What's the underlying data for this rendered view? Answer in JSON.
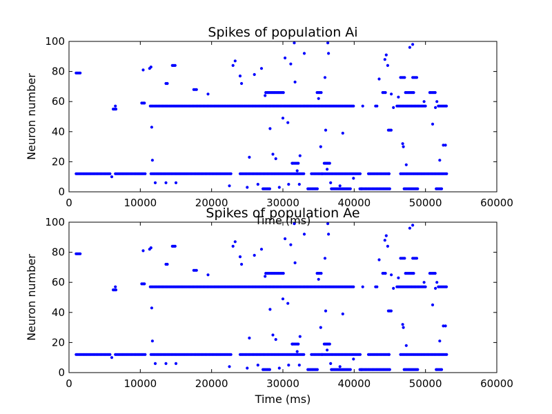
{
  "chart_data": [
    {
      "type": "scatter",
      "title": "Spikes of population Ai",
      "xlabel": "Time (ms)",
      "ylabel": "Neuron number",
      "xlim": [
        0,
        60000
      ],
      "ylim": [
        0,
        100
      ],
      "xticks": [
        "0",
        "10000",
        "20000",
        "30000",
        "40000",
        "50000",
        "60000"
      ],
      "yticks": [
        "0",
        "20",
        "40",
        "60",
        "80",
        "100"
      ],
      "grid": false,
      "marker_color": "#0000ff",
      "rows": [
        {
          "neuron": 79,
          "spans": [
            [
              1000,
              1600
            ]
          ]
        },
        {
          "neuron": 55,
          "spans": [
            [
              6200,
              6700
            ]
          ]
        },
        {
          "neuron": 57,
          "spans": [
            [
              6500,
              6600
            ],
            [
              11400,
              40000
            ],
            [
              41200,
              41300
            ],
            [
              43000,
              43300
            ],
            [
              46000,
              50000
            ],
            [
              51800,
              53000
            ]
          ]
        },
        {
          "neuron": 59,
          "spans": [
            [
              10200,
              10700
            ]
          ]
        },
        {
          "neuron": 12,
          "spans": [
            [
              1000,
              5800
            ],
            [
              6500,
              10800
            ],
            [
              11500,
              22800
            ],
            [
              24000,
              33000
            ],
            [
              34000,
              41000
            ],
            [
              42000,
              45000
            ],
            [
              46500,
              53000
            ]
          ]
        },
        {
          "neuron": 2,
          "spans": [
            [
              27200,
              28200
            ],
            [
              33500,
              35000
            ],
            [
              36800,
              39500
            ],
            [
              40800,
              45000
            ],
            [
              47000,
              49000
            ],
            [
              51500,
              52300
            ]
          ]
        },
        {
          "neuron": 66,
          "spans": [
            [
              27600,
              30200
            ],
            [
              34800,
              35400
            ],
            [
              44000,
              44500
            ],
            [
              47200,
              48400
            ],
            [
              50600,
              51400
            ]
          ]
        },
        {
          "neuron": 76,
          "spans": [
            [
              46500,
              47200
            ],
            [
              48200,
              48800
            ]
          ]
        },
        {
          "neuron": 19,
          "spans": [
            [
              31400,
              32300
            ],
            [
              35800,
              36600
            ]
          ]
        },
        {
          "neuron": 84,
          "spans": [
            [
              14500,
              15000
            ]
          ]
        },
        {
          "neuron": 68,
          "spans": [
            [
              17500,
              18000
            ]
          ]
        },
        {
          "neuron": 72,
          "spans": [
            [
              13600,
              13800
            ]
          ]
        },
        {
          "neuron": 41,
          "spans": [
            [
              44800,
              45300
            ]
          ]
        }
      ],
      "points": [
        [
          6000,
          10
        ],
        [
          10400,
          81
        ],
        [
          11300,
          82
        ],
        [
          11500,
          83
        ],
        [
          11600,
          43
        ],
        [
          11700,
          21
        ],
        [
          12100,
          6
        ],
        [
          13600,
          6
        ],
        [
          15000,
          6
        ],
        [
          19500,
          65
        ],
        [
          22500,
          4
        ],
        [
          23000,
          84
        ],
        [
          23300,
          87
        ],
        [
          24000,
          77
        ],
        [
          24200,
          72
        ],
        [
          25000,
          3
        ],
        [
          25300,
          23
        ],
        [
          26000,
          78
        ],
        [
          26500,
          5
        ],
        [
          27000,
          82
        ],
        [
          27500,
          64
        ],
        [
          28200,
          42
        ],
        [
          28600,
          25
        ],
        [
          29000,
          22
        ],
        [
          29500,
          3
        ],
        [
          30000,
          49
        ],
        [
          30300,
          89
        ],
        [
          30700,
          46
        ],
        [
          30800,
          5
        ],
        [
          31100,
          85
        ],
        [
          31300,
          19
        ],
        [
          31600,
          99
        ],
        [
          31700,
          73
        ],
        [
          32000,
          14
        ],
        [
          32300,
          5
        ],
        [
          32400,
          24
        ],
        [
          33000,
          92
        ],
        [
          35000,
          62
        ],
        [
          35300,
          30
        ],
        [
          35500,
          12
        ],
        [
          35900,
          76
        ],
        [
          36000,
          41
        ],
        [
          36200,
          15
        ],
        [
          36300,
          99
        ],
        [
          36400,
          92
        ],
        [
          36700,
          6
        ],
        [
          38400,
          39
        ],
        [
          38000,
          4
        ],
        [
          39900,
          9
        ],
        [
          41000,
          2
        ],
        [
          43500,
          75
        ],
        [
          44300,
          88
        ],
        [
          44500,
          91
        ],
        [
          44700,
          84
        ],
        [
          44900,
          12
        ],
        [
          45200,
          65
        ],
        [
          45500,
          56
        ],
        [
          46200,
          63
        ],
        [
          46800,
          32
        ],
        [
          46900,
          30
        ],
        [
          47300,
          18
        ],
        [
          47800,
          96
        ],
        [
          48200,
          98
        ],
        [
          49800,
          60
        ],
        [
          51000,
          45
        ],
        [
          51400,
          56
        ],
        [
          51600,
          60
        ],
        [
          52000,
          21
        ],
        [
          52500,
          31
        ],
        [
          52800,
          31
        ]
      ]
    },
    {
      "type": "scatter",
      "title": "Spikes of population Ae",
      "xlabel": "Time (ms)",
      "ylabel": "Neuron number",
      "xlim": [
        0,
        60000
      ],
      "ylim": [
        0,
        100
      ],
      "xticks": [
        "0",
        "10000",
        "20000",
        "30000",
        "40000",
        "50000",
        "60000"
      ],
      "yticks": [
        "0",
        "20",
        "40",
        "60",
        "80",
        "100"
      ],
      "grid": false,
      "marker_color": "#0000ff",
      "rows": [
        {
          "neuron": 79,
          "spans": [
            [
              1000,
              1600
            ]
          ]
        },
        {
          "neuron": 55,
          "spans": [
            [
              6200,
              6700
            ]
          ]
        },
        {
          "neuron": 57,
          "spans": [
            [
              6500,
              6600
            ],
            [
              11400,
              40000
            ],
            [
              41200,
              41300
            ],
            [
              43000,
              43300
            ],
            [
              46000,
              50000
            ],
            [
              51800,
              53000
            ]
          ]
        },
        {
          "neuron": 59,
          "spans": [
            [
              10200,
              10700
            ]
          ]
        },
        {
          "neuron": 12,
          "spans": [
            [
              1000,
              5800
            ],
            [
              6500,
              10800
            ],
            [
              11500,
              22800
            ],
            [
              24000,
              33000
            ],
            [
              34000,
              41000
            ],
            [
              42000,
              45000
            ],
            [
              46500,
              53000
            ]
          ]
        },
        {
          "neuron": 2,
          "spans": [
            [
              27200,
              28200
            ],
            [
              33500,
              35000
            ],
            [
              36800,
              39500
            ],
            [
              40800,
              45000
            ],
            [
              47000,
              49000
            ],
            [
              51500,
              52300
            ]
          ]
        },
        {
          "neuron": 66,
          "spans": [
            [
              27600,
              30200
            ],
            [
              34800,
              35400
            ],
            [
              44000,
              44500
            ],
            [
              47200,
              48400
            ],
            [
              50600,
              51400
            ]
          ]
        },
        {
          "neuron": 76,
          "spans": [
            [
              46500,
              47200
            ],
            [
              48200,
              48800
            ]
          ]
        },
        {
          "neuron": 19,
          "spans": [
            [
              31400,
              32300
            ],
            [
              35800,
              36600
            ]
          ]
        },
        {
          "neuron": 84,
          "spans": [
            [
              14500,
              15000
            ]
          ]
        },
        {
          "neuron": 68,
          "spans": [
            [
              17500,
              18000
            ]
          ]
        },
        {
          "neuron": 72,
          "spans": [
            [
              13600,
              13800
            ]
          ]
        },
        {
          "neuron": 41,
          "spans": [
            [
              44800,
              45300
            ]
          ]
        }
      ],
      "points": [
        [
          6000,
          10
        ],
        [
          10400,
          81
        ],
        [
          11300,
          82
        ],
        [
          11500,
          83
        ],
        [
          11600,
          43
        ],
        [
          11700,
          21
        ],
        [
          12100,
          6
        ],
        [
          13600,
          6
        ],
        [
          15000,
          6
        ],
        [
          19500,
          65
        ],
        [
          22500,
          4
        ],
        [
          23000,
          84
        ],
        [
          23300,
          87
        ],
        [
          24000,
          77
        ],
        [
          24200,
          72
        ],
        [
          25000,
          3
        ],
        [
          25300,
          23
        ],
        [
          26000,
          78
        ],
        [
          26500,
          5
        ],
        [
          27000,
          82
        ],
        [
          27500,
          64
        ],
        [
          28200,
          42
        ],
        [
          28600,
          25
        ],
        [
          29000,
          22
        ],
        [
          29500,
          3
        ],
        [
          30000,
          49
        ],
        [
          30300,
          89
        ],
        [
          30700,
          46
        ],
        [
          30800,
          5
        ],
        [
          31100,
          85
        ],
        [
          31300,
          19
        ],
        [
          31600,
          99
        ],
        [
          31700,
          73
        ],
        [
          32000,
          14
        ],
        [
          32300,
          5
        ],
        [
          32400,
          24
        ],
        [
          33000,
          92
        ],
        [
          35000,
          62
        ],
        [
          35300,
          30
        ],
        [
          35500,
          12
        ],
        [
          35900,
          76
        ],
        [
          36000,
          41
        ],
        [
          36200,
          15
        ],
        [
          36300,
          99
        ],
        [
          36400,
          92
        ],
        [
          36700,
          6
        ],
        [
          38400,
          39
        ],
        [
          38000,
          4
        ],
        [
          39900,
          9
        ],
        [
          41000,
          2
        ],
        [
          43500,
          75
        ],
        [
          44300,
          88
        ],
        [
          44500,
          91
        ],
        [
          44700,
          84
        ],
        [
          44900,
          12
        ],
        [
          45200,
          65
        ],
        [
          45500,
          56
        ],
        [
          46200,
          63
        ],
        [
          46800,
          32
        ],
        [
          46900,
          30
        ],
        [
          47300,
          18
        ],
        [
          47800,
          96
        ],
        [
          48200,
          98
        ],
        [
          49800,
          60
        ],
        [
          51000,
          45
        ],
        [
          51400,
          56
        ],
        [
          51600,
          60
        ],
        [
          52000,
          21
        ],
        [
          52500,
          31
        ],
        [
          52800,
          31
        ]
      ]
    }
  ]
}
